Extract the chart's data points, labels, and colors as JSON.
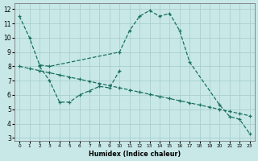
{
  "xlabel": "Humidex (Indice chaleur)",
  "bg_color": "#c8e8e8",
  "grid_color": "#aacece",
  "line_color": "#1a7060",
  "xlim": [
    -0.5,
    23.5
  ],
  "ylim": [
    2.8,
    12.4
  ],
  "xticks": [
    0,
    1,
    2,
    3,
    4,
    5,
    6,
    7,
    8,
    9,
    10,
    11,
    12,
    13,
    14,
    15,
    16,
    17,
    18,
    19,
    20,
    21,
    22,
    23
  ],
  "yticks": [
    3,
    4,
    5,
    6,
    7,
    8,
    9,
    10,
    11,
    12
  ],
  "line1_x": [
    0,
    1,
    2,
    3,
    10,
    11,
    12,
    13,
    14,
    15,
    16,
    17,
    20,
    21,
    22,
    23
  ],
  "line1_y": [
    11.5,
    10.0,
    8.1,
    8.0,
    9.0,
    10.5,
    11.5,
    11.9,
    11.5,
    11.7,
    10.5,
    8.3,
    5.3,
    4.5,
    4.3,
    3.3
  ],
  "line2_x": [
    0,
    1,
    2,
    3,
    4,
    5,
    6,
    7,
    8,
    9,
    10,
    11,
    12,
    13,
    14,
    15,
    16,
    17,
    18,
    19,
    20,
    21,
    22,
    23
  ],
  "line2_y": [
    8.0,
    7.85,
    7.7,
    7.55,
    7.4,
    7.25,
    7.1,
    6.95,
    6.8,
    6.65,
    6.5,
    6.35,
    6.2,
    6.05,
    5.9,
    5.75,
    5.6,
    5.45,
    5.3,
    5.15,
    5.0,
    4.85,
    4.7,
    4.55
  ],
  "line3_x": [
    2,
    3,
    4,
    5,
    6,
    7,
    8,
    9,
    10
  ],
  "line3_y": [
    8.0,
    7.0,
    5.5,
    5.5,
    6.0,
    6.3,
    6.6,
    6.5,
    7.7
  ]
}
